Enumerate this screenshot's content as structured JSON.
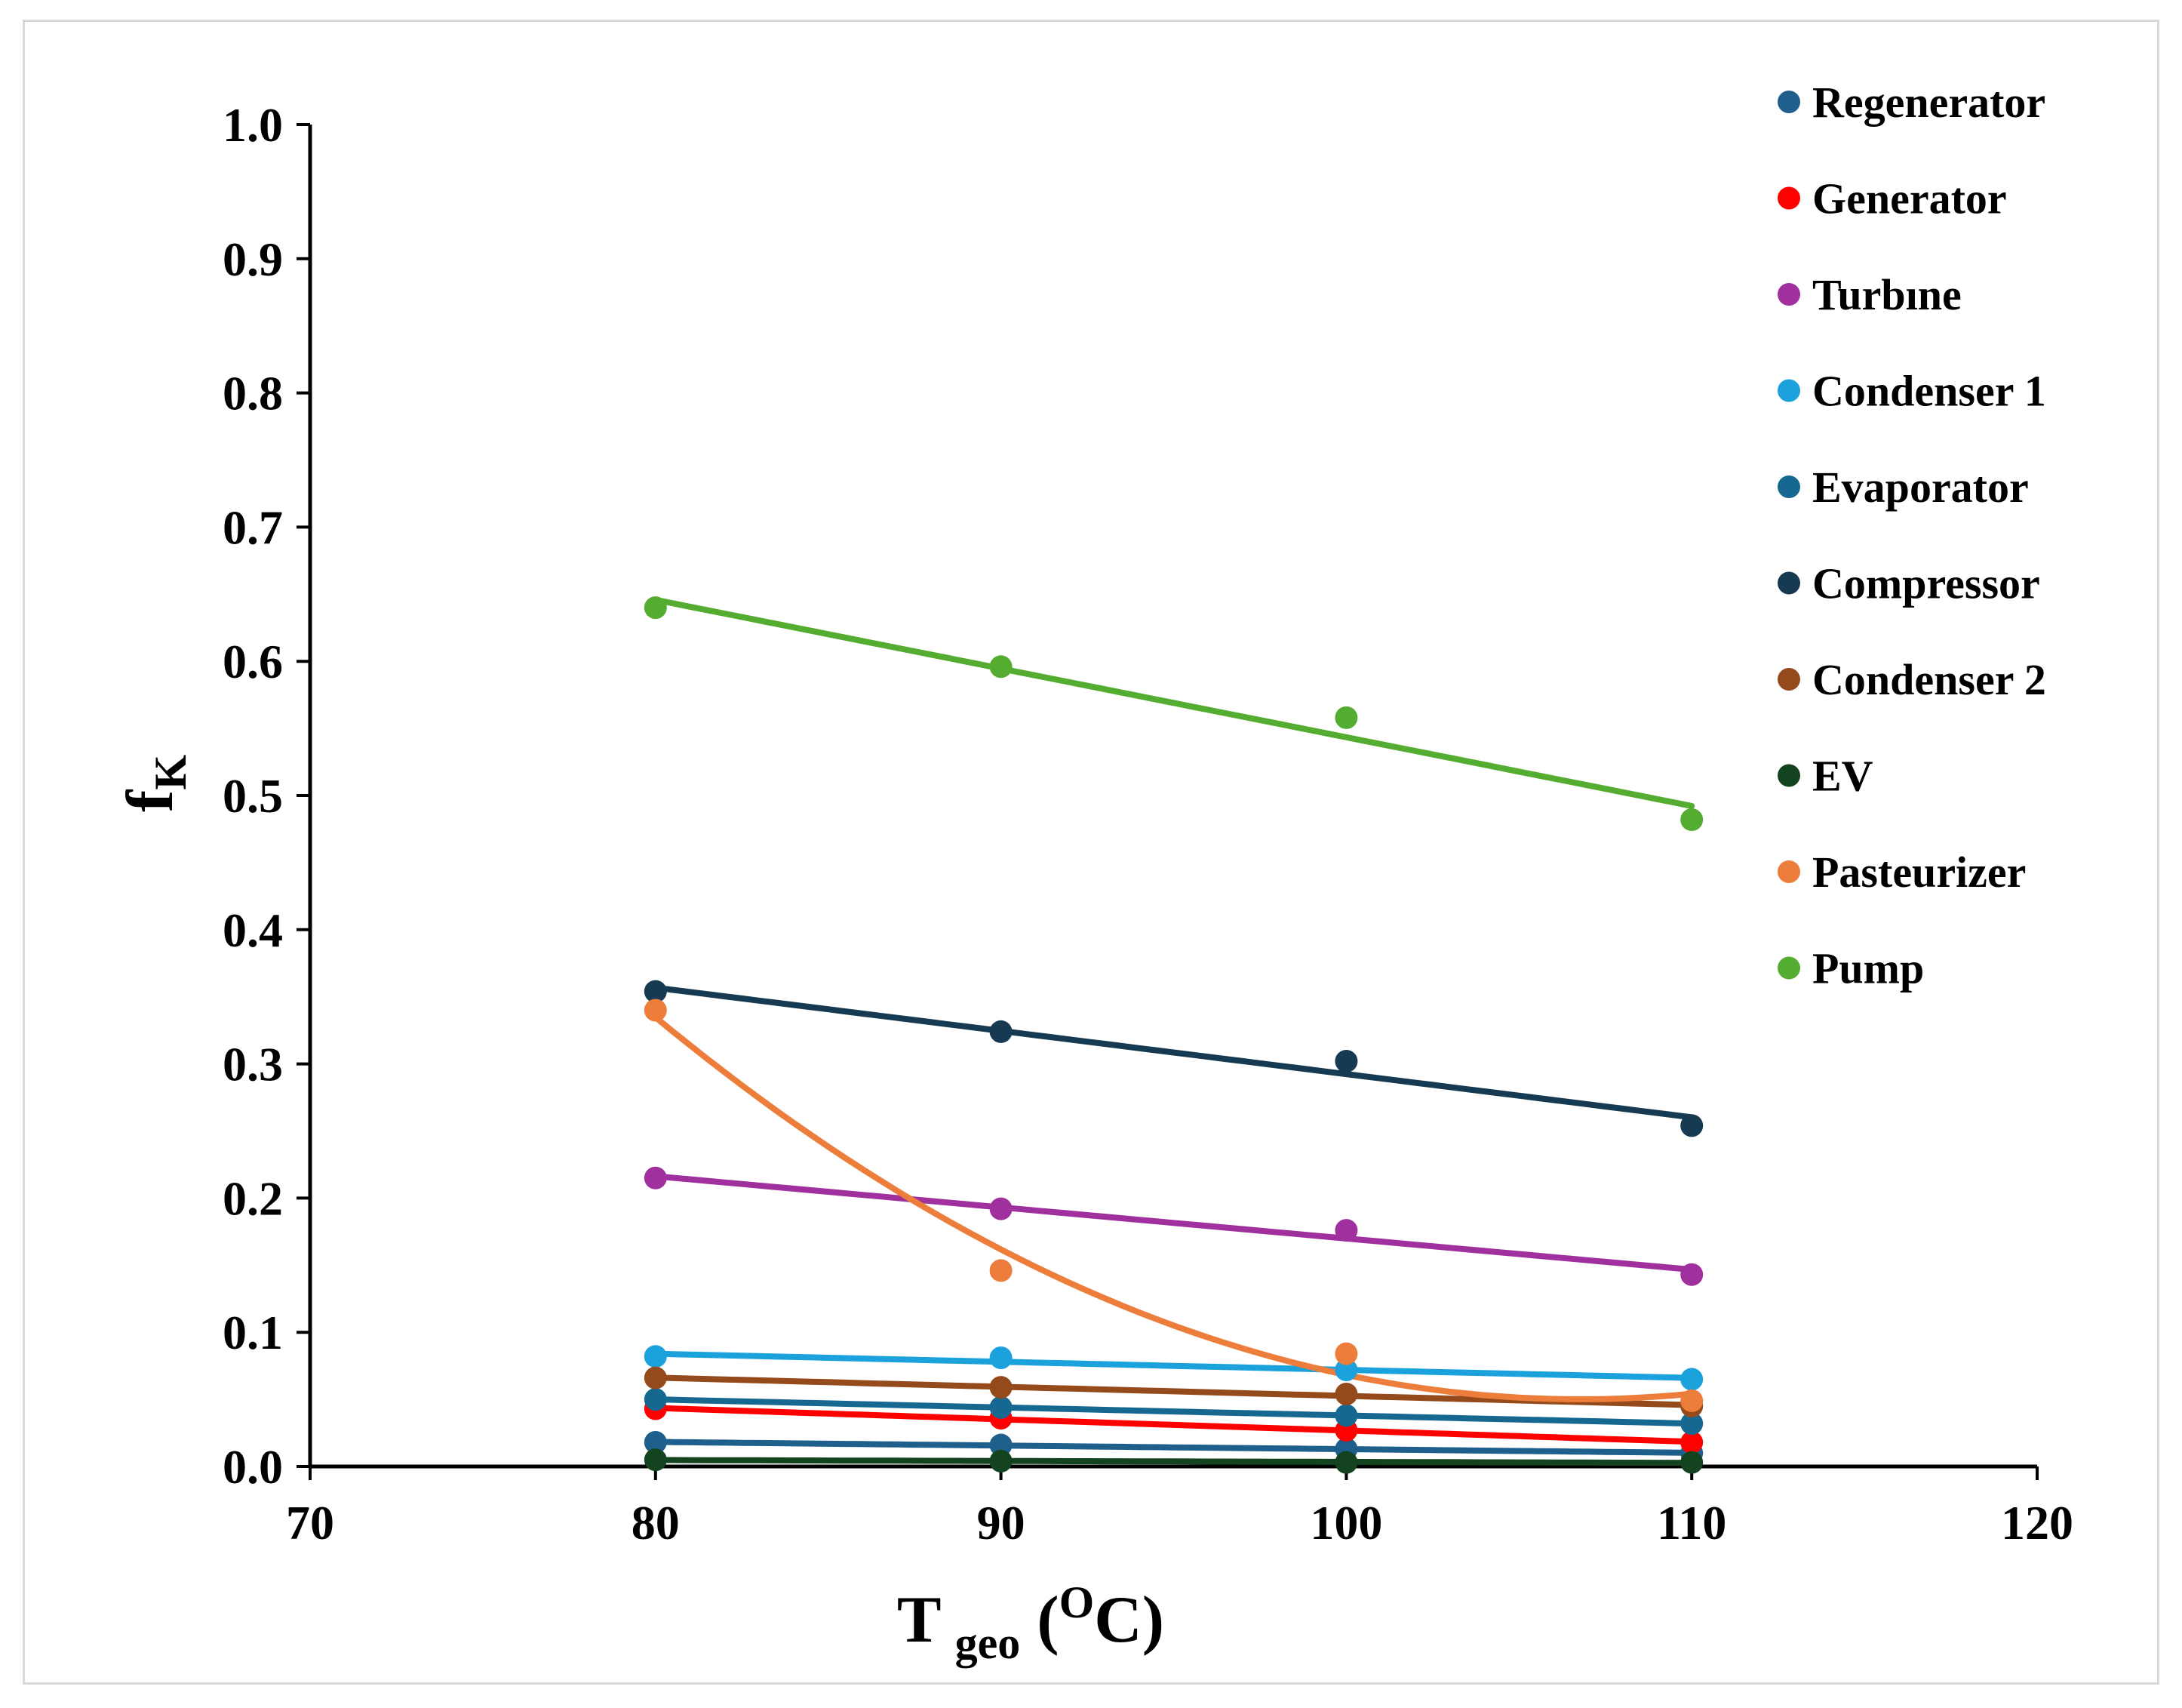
{
  "chart_data": {
    "type": "scatter",
    "title": "",
    "xlabel": {
      "main": "T",
      "sub": "geo",
      "open": " (",
      "sup": "O",
      "unit": "C)"
    },
    "ylabel": {
      "main": "f",
      "sub": "K"
    },
    "xlim": [
      70,
      120
    ],
    "ylim": [
      0.0,
      1.0
    ],
    "x_ticks": [
      70,
      80,
      90,
      100,
      110,
      120
    ],
    "x_tick_labels": [
      "70",
      "80",
      "90",
      "100",
      "110",
      "120"
    ],
    "y_ticks": [
      0.0,
      0.1,
      0.2,
      0.3,
      0.4,
      0.5,
      0.6,
      0.7,
      0.8,
      0.9,
      1.0
    ],
    "y_tick_labels": [
      "0.0",
      "0.1",
      "0.2",
      "0.3",
      "0.4",
      "0.5",
      "0.6",
      "0.7",
      "0.8",
      "0.9",
      "1.0"
    ],
    "grid": false,
    "legend_position": "top-right",
    "x": [
      80,
      90,
      100,
      110
    ],
    "series": [
      {
        "name": "Regenerator",
        "color": "#1f5f8b",
        "values": [
          0.018,
          0.016,
          0.013,
          0.01
        ],
        "trend": "linear"
      },
      {
        "name": "Generator",
        "color": "#ff0000",
        "values": [
          0.043,
          0.036,
          0.027,
          0.018
        ],
        "trend": "linear"
      },
      {
        "name": "Turbıne",
        "color": "#a0309e",
        "values": [
          0.215,
          0.192,
          0.176,
          0.143
        ],
        "trend": "linear"
      },
      {
        "name": "Condenser 1",
        "color": "#1ba1dc",
        "values": [
          0.082,
          0.081,
          0.072,
          0.065
        ],
        "trend": "linear"
      },
      {
        "name": "Evaporator",
        "color": "#176891",
        "values": [
          0.05,
          0.044,
          0.038,
          0.032
        ],
        "trend": "linear"
      },
      {
        "name": "Compressor",
        "color": "#163a52",
        "values": [
          0.354,
          0.324,
          0.302,
          0.254
        ],
        "trend": "linear"
      },
      {
        "name": "Condenser 2",
        "color": "#954a1c",
        "values": [
          0.066,
          0.059,
          0.054,
          0.045
        ],
        "trend": "linear"
      },
      {
        "name": "EV",
        "color": "#14441f",
        "values": [
          0.005,
          0.004,
          0.003,
          0.003
        ],
        "trend": "linear"
      },
      {
        "name": "Pasteurizer",
        "color": "#ed7d3a",
        "values": [
          0.34,
          0.146,
          0.084,
          0.049
        ],
        "trend": "quadratic"
      },
      {
        "name": "Pump",
        "color": "#54ad31",
        "values": [
          0.64,
          0.596,
          0.558,
          0.482
        ],
        "trend": "linear"
      }
    ]
  }
}
